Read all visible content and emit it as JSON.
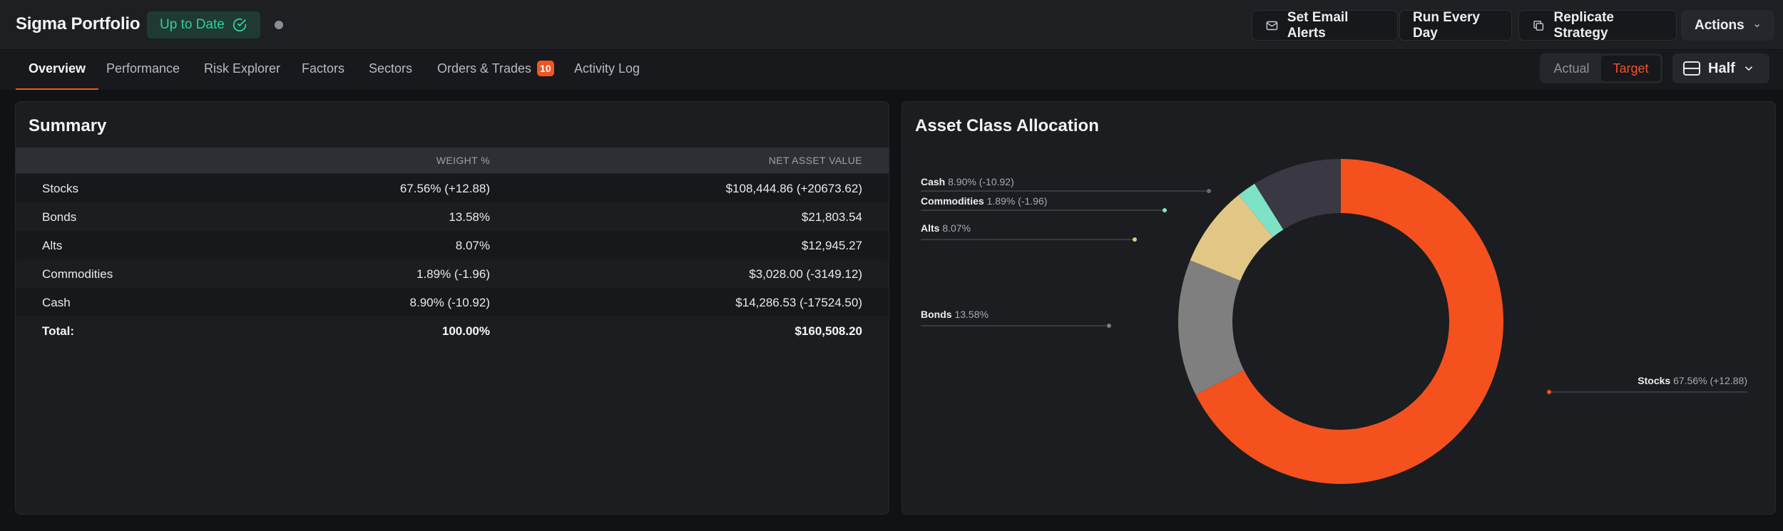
{
  "header": {
    "title": "Sigma Portfolio",
    "status": "Up to Date",
    "buttons": {
      "email_alerts": "Set Email Alerts",
      "run_every_day": "Run Every Day",
      "replicate": "Replicate Strategy",
      "actions": "Actions"
    }
  },
  "tabs": [
    {
      "label": "Overview"
    },
    {
      "label": "Performance"
    },
    {
      "label": "Risk Explorer"
    },
    {
      "label": "Factors"
    },
    {
      "label": "Sectors"
    },
    {
      "label": "Orders & Trades",
      "badge": "10"
    },
    {
      "label": "Activity Log"
    }
  ],
  "toggle": {
    "actual": "Actual",
    "target": "Target",
    "selected": "Target"
  },
  "view": {
    "label": "Half"
  },
  "summary": {
    "title": "Summary",
    "columns": {
      "weight": "WEIGHT %",
      "nav": "NET ASSET VALUE"
    },
    "rows": [
      {
        "name": "Stocks",
        "weight": "67.56% (+12.88)",
        "nav": "$108,444.86 (+20673.62)"
      },
      {
        "name": "Bonds",
        "weight": "13.58%",
        "nav": "$21,803.54"
      },
      {
        "name": "Alts",
        "weight": "8.07%",
        "nav": "$12,945.27"
      },
      {
        "name": "Commodities",
        "weight": "1.89% (-1.96)",
        "nav": "$3,028.00 (-3149.12)"
      },
      {
        "name": "Cash",
        "weight": "8.90% (-10.92)",
        "nav": "$14,286.53 (-17524.50)"
      }
    ],
    "total": {
      "name": "Total:",
      "weight": "100.00%",
      "nav": "$160,508.20"
    }
  },
  "allocation": {
    "title": "Asset Class Allocation"
  },
  "colors": {
    "accent": "#f05426",
    "status_green": "#2ecf9a",
    "stocks": "#f4511e",
    "bonds": "#7f7f7f",
    "alts": "#e1c685",
    "commodities": "#7ee3c6",
    "cash": "#393843"
  },
  "chart_data": {
    "type": "pie",
    "variant": "donut",
    "title": "Asset Class Allocation",
    "categories": [
      "Stocks",
      "Bonds",
      "Alts",
      "Commodities",
      "Cash"
    ],
    "values": [
      67.56,
      13.58,
      8.07,
      1.89,
      8.9
    ],
    "labels": [
      {
        "name": "Stocks",
        "detail": "67.56% (+12.88)"
      },
      {
        "name": "Bonds",
        "detail": "13.58%"
      },
      {
        "name": "Alts",
        "detail": "8.07%"
      },
      {
        "name": "Commodities",
        "detail": "1.89% (-1.96)"
      },
      {
        "name": "Cash",
        "detail": "8.90% (-10.92)"
      }
    ]
  }
}
